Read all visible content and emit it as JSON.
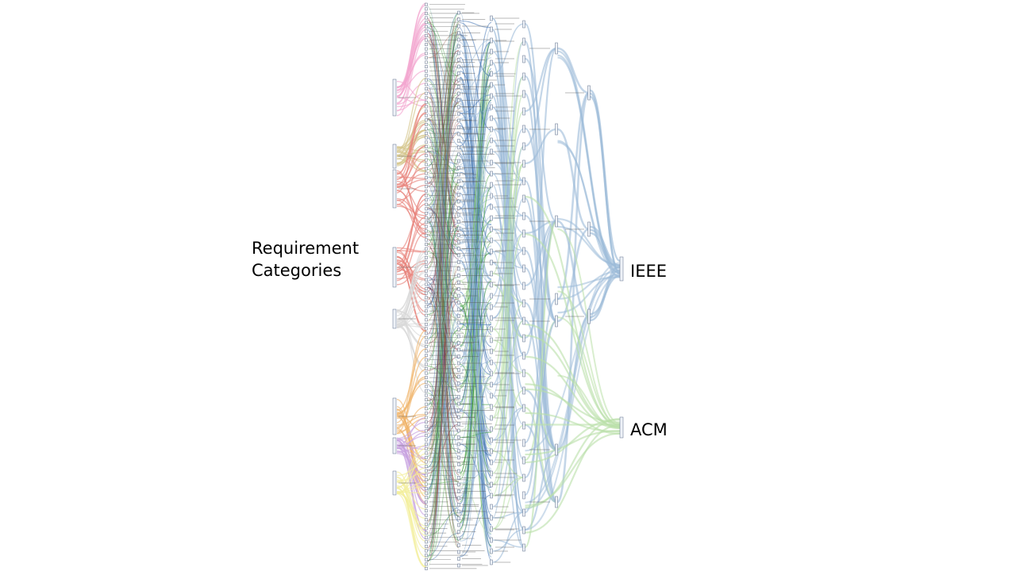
{
  "labels": {
    "requirement_line1": "Requirement",
    "requirement_line2": "Categories",
    "ieee": "IEEE",
    "acm": "ACM"
  },
  "colors": {
    "ieee_flow": "#9dbbd9",
    "acm_flow": "#b9e0a8",
    "dark_blue_flow": "#3d6fb0",
    "dark_red_flow": "#8a2a3a",
    "dark_green_flow": "#3c9a3a",
    "pink": "#f2a6cf",
    "olive": "#d4c58a",
    "red": "#e8847c",
    "gray": "#d9d9d9",
    "orange": "#f0b36a",
    "purple": "#c7a3e0",
    "yellow": "#f3ee9a",
    "node_stroke": "#5f6f8a"
  },
  "category_groups": [
    {
      "color_key": "pink",
      "weight": 1.0
    },
    {
      "color_key": "olive",
      "weight": 0.6
    },
    {
      "color_key": "red",
      "weight": 1.8
    },
    {
      "color_key": "gray",
      "weight": 1.0
    },
    {
      "color_key": "orange",
      "weight": 0.9
    },
    {
      "color_key": "purple",
      "weight": 0.6
    },
    {
      "color_key": "yellow",
      "weight": 0.9
    }
  ]
}
